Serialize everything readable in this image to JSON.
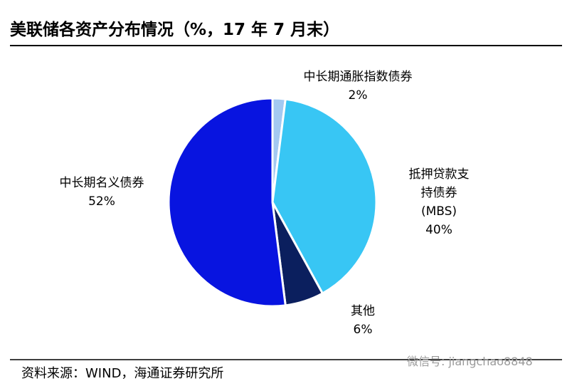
{
  "chart_data": {
    "type": "pie",
    "title": "美联储各资产分布情况（%，17 年 7 月末）",
    "categories": [
      "中长期通胀指数债券",
      "抵押贷款支持债券(MBS)",
      "其他",
      "中长期名义债券"
    ],
    "values": [
      2,
      40,
      6,
      52
    ],
    "value_labels": [
      "2%",
      "40%",
      "6%",
      "52%"
    ],
    "colors": [
      "#a3c9f1",
      "#38c6f4",
      "#0b1f5e",
      "#0814e0"
    ],
    "source": "资料来源：WIND，海通证券研究所",
    "watermark": "微信号: jiangchao8848"
  }
}
